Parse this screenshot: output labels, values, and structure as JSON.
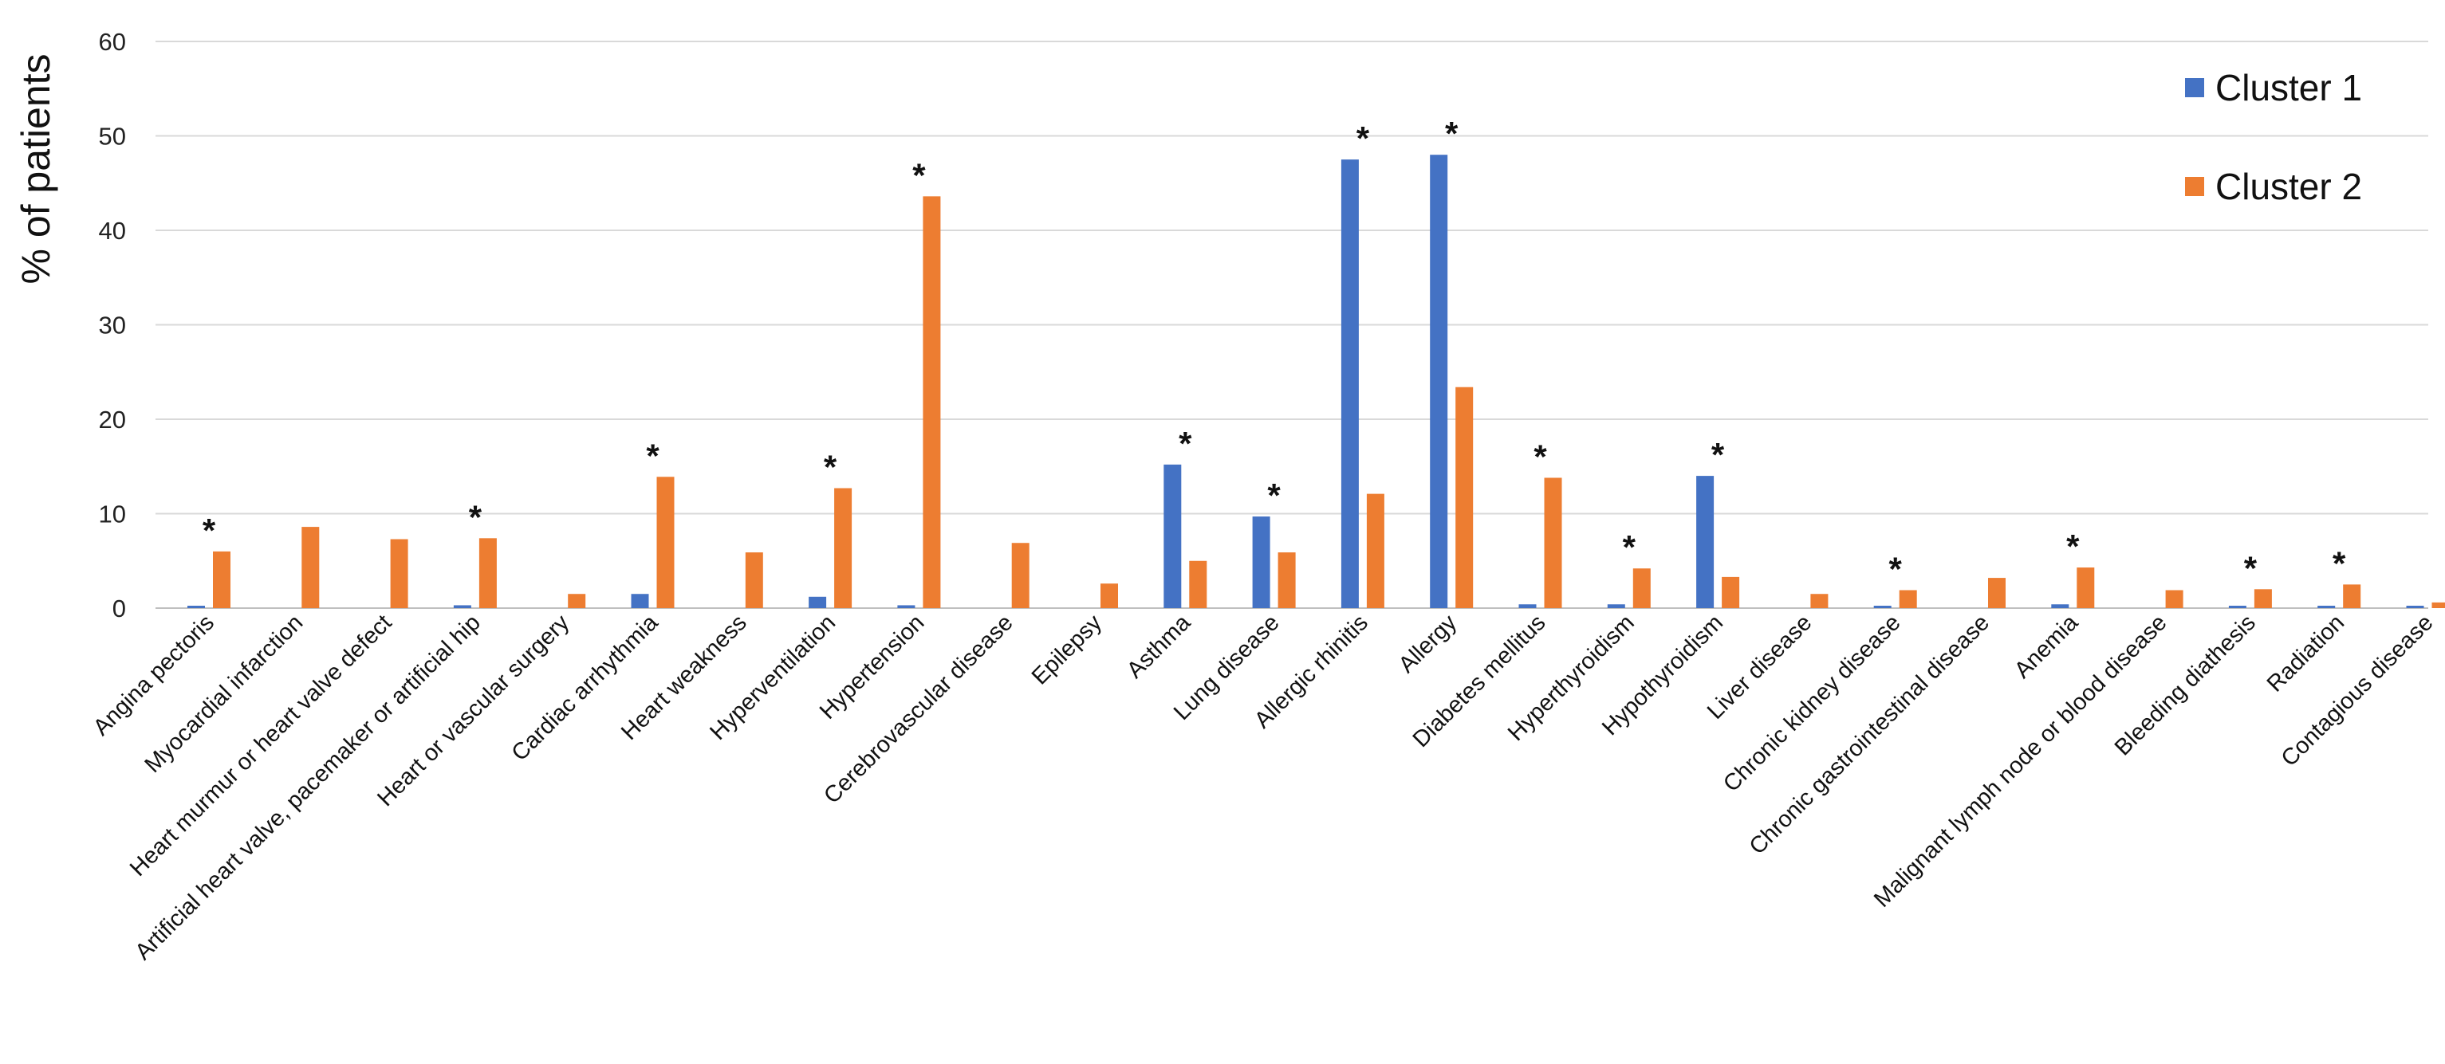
{
  "chart_data": {
    "type": "bar",
    "title": "",
    "xlabel": "",
    "ylabel": "% of patients",
    "ylim": [
      0,
      60
    ],
    "yticks": [
      0,
      10,
      20,
      30,
      40,
      50,
      60
    ],
    "grid": true,
    "legend_position": "top-right",
    "categories": [
      "Angina pectoris",
      "Myocardial infarction",
      "Heart murmur or heart valve defect",
      "Artificial heart valve, pacemaker or artificial hip",
      "Heart or vascular surgery",
      "Cardiac arrhythmia",
      "Heart weakness",
      "Hyperventilation",
      "Hypertension",
      "Cerebrovascular disease",
      "Epilepsy",
      "Asthma",
      "Lung disease",
      "Allergic rhinitis",
      "Allergy",
      "Diabetes mellitus",
      "Hyperthyroidism",
      "Hypothyroidism",
      "Liver disease",
      "Chronic kidney disease",
      "Chronic gastrointestinal disease",
      "Anemia",
      "Malignant lymph node or blood disease",
      "Bleeding diathesis",
      "Radiation",
      "Contagious disease"
    ],
    "series": [
      {
        "name": "Cluster 1",
        "color": "#4472C4",
        "values": [
          0.2,
          0,
          0,
          0.3,
          0,
          1.5,
          0,
          1.2,
          0.3,
          0,
          0,
          15.2,
          9.7,
          47.5,
          48.0,
          0.4,
          0.4,
          14.0,
          0,
          0.2,
          0,
          0.4,
          0,
          0.2,
          0.2,
          0.2
        ]
      },
      {
        "name": "Cluster 2",
        "color": "#ED7D31",
        "values": [
          6.0,
          8.6,
          7.3,
          7.4,
          1.5,
          13.9,
          5.9,
          12.7,
          43.6,
          6.9,
          2.6,
          5.0,
          5.9,
          12.1,
          23.4,
          13.8,
          4.2,
          3.3,
          1.5,
          1.9,
          3.2,
          4.3,
          1.9,
          2.0,
          2.5,
          0.6
        ]
      }
    ],
    "significance_marker": "*",
    "significant": [
      true,
      false,
      false,
      true,
      false,
      true,
      false,
      true,
      true,
      false,
      false,
      true,
      true,
      true,
      true,
      true,
      true,
      true,
      false,
      true,
      false,
      true,
      false,
      true,
      true,
      false
    ]
  }
}
